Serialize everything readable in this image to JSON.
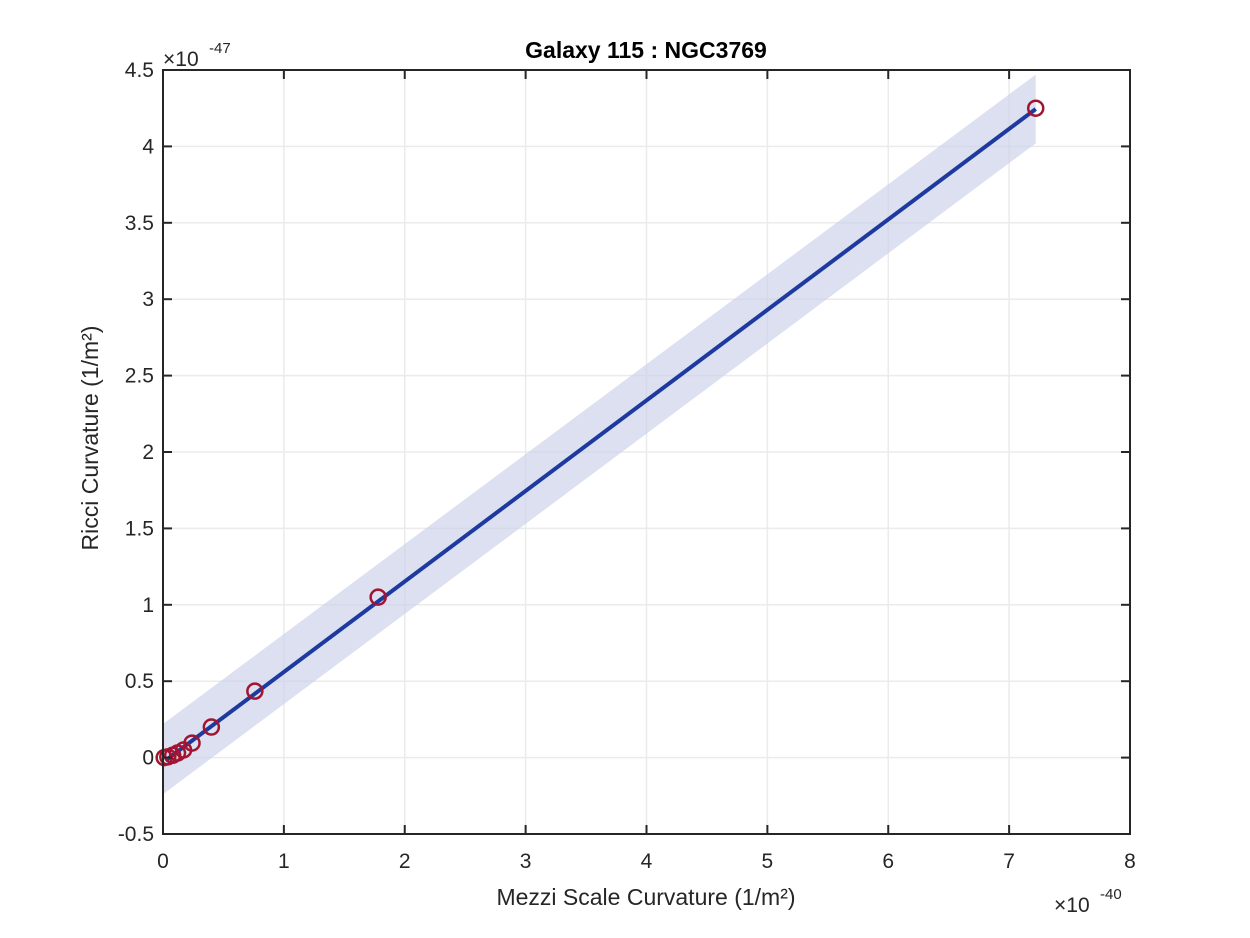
{
  "chart_data": {
    "type": "scatter",
    "title": "Galaxy 115 : NGC3769",
    "xlabel": "Mezzi Scale Curvature (1/m²)",
    "ylabel": "Ricci Curvature (1/m²)",
    "x_multiplier": "×10",
    "x_exponent": "-40",
    "y_multiplier": "×10",
    "y_exponent": "-47",
    "xlim": [
      0,
      8
    ],
    "ylim": [
      -0.5,
      4.5
    ],
    "xticks": [
      "0",
      "1",
      "2",
      "3",
      "4",
      "5",
      "6",
      "7",
      "8"
    ],
    "yticks": [
      "-0.5",
      "0",
      "0.5",
      "1",
      "1.5",
      "2",
      "2.5",
      "3",
      "3.5",
      "4",
      "4.5"
    ],
    "grid": true,
    "points": {
      "x": [
        0.01,
        0.04,
        0.08,
        0.12,
        0.17,
        0.24,
        0.4,
        0.76,
        1.78,
        7.22
      ],
      "y": [
        0.0,
        0.005,
        0.015,
        0.03,
        0.05,
        0.095,
        0.2,
        0.435,
        1.05,
        4.25
      ],
      "color": "#a2142f"
    },
    "fit": {
      "x": [
        0.02,
        7.22
      ],
      "y": [
        -0.02,
        4.245
      ],
      "color": "#1f3a9e"
    },
    "band": {
      "x": [
        0.0,
        7.22
      ],
      "upper": [
        0.22,
        4.47
      ],
      "lower": [
        -0.24,
        4.02
      ],
      "color": "#c9d0ea"
    }
  }
}
